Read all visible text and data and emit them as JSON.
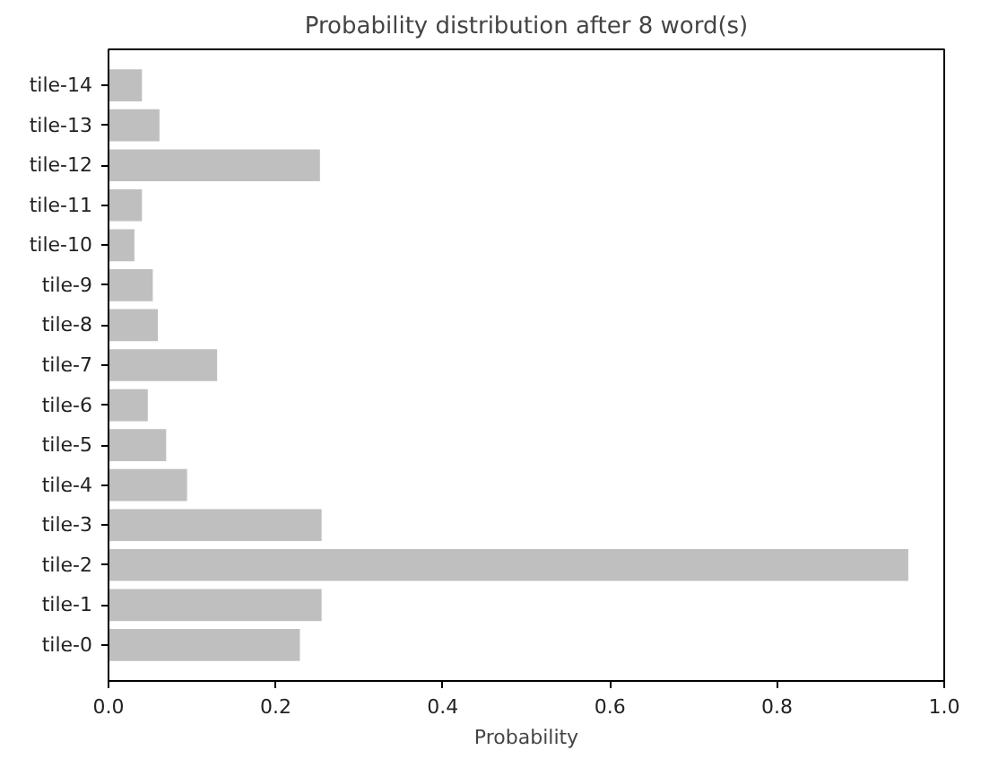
{
  "chart_data": {
    "type": "bar",
    "orientation": "horizontal",
    "title": "Probability distribution after 8 word(s)",
    "xlabel": "Probability",
    "categories": [
      "tile-14",
      "tile-13",
      "tile-12",
      "tile-11",
      "tile-10",
      "tile-9",
      "tile-8",
      "tile-7",
      "tile-6",
      "tile-5",
      "tile-4",
      "tile-3",
      "tile-2",
      "tile-1",
      "tile-0"
    ],
    "values": [
      0.04,
      0.061,
      0.253,
      0.04,
      0.031,
      0.053,
      0.059,
      0.13,
      0.047,
      0.069,
      0.094,
      0.255,
      0.957,
      0.255,
      0.229
    ],
    "color": "#bfbfbf",
    "xlim": [
      0.0,
      1.0
    ],
    "xticks": [
      {
        "value": 0,
        "label": "0.0"
      },
      0.2,
      0.4,
      0.6,
      0.8,
      {
        "value": 1,
        "label": "1.0"
      }
    ],
    "grid": false
  }
}
